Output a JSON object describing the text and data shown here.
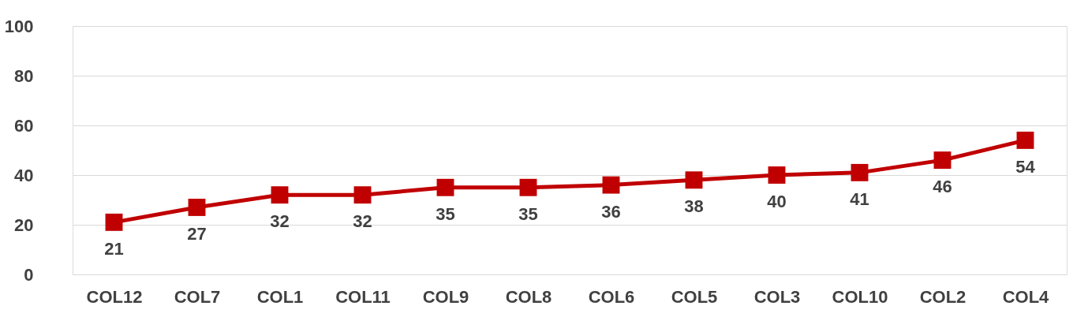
{
  "chart_data": {
    "type": "line",
    "categories": [
      "COL12",
      "COL7",
      "COL1",
      "COL11",
      "COL9",
      "COL8",
      "COL6",
      "COL5",
      "COL3",
      "COL10",
      "COL2",
      "COL4"
    ],
    "values": [
      21,
      27,
      32,
      32,
      35,
      35,
      36,
      38,
      40,
      41,
      46,
      54
    ],
    "color": "#c00000",
    "ylim": [
      0,
      100
    ],
    "yticks": [
      0,
      20,
      40,
      60,
      80,
      100
    ],
    "grid": "y",
    "marker": "square",
    "line_style": "solid",
    "data_labels": true
  }
}
